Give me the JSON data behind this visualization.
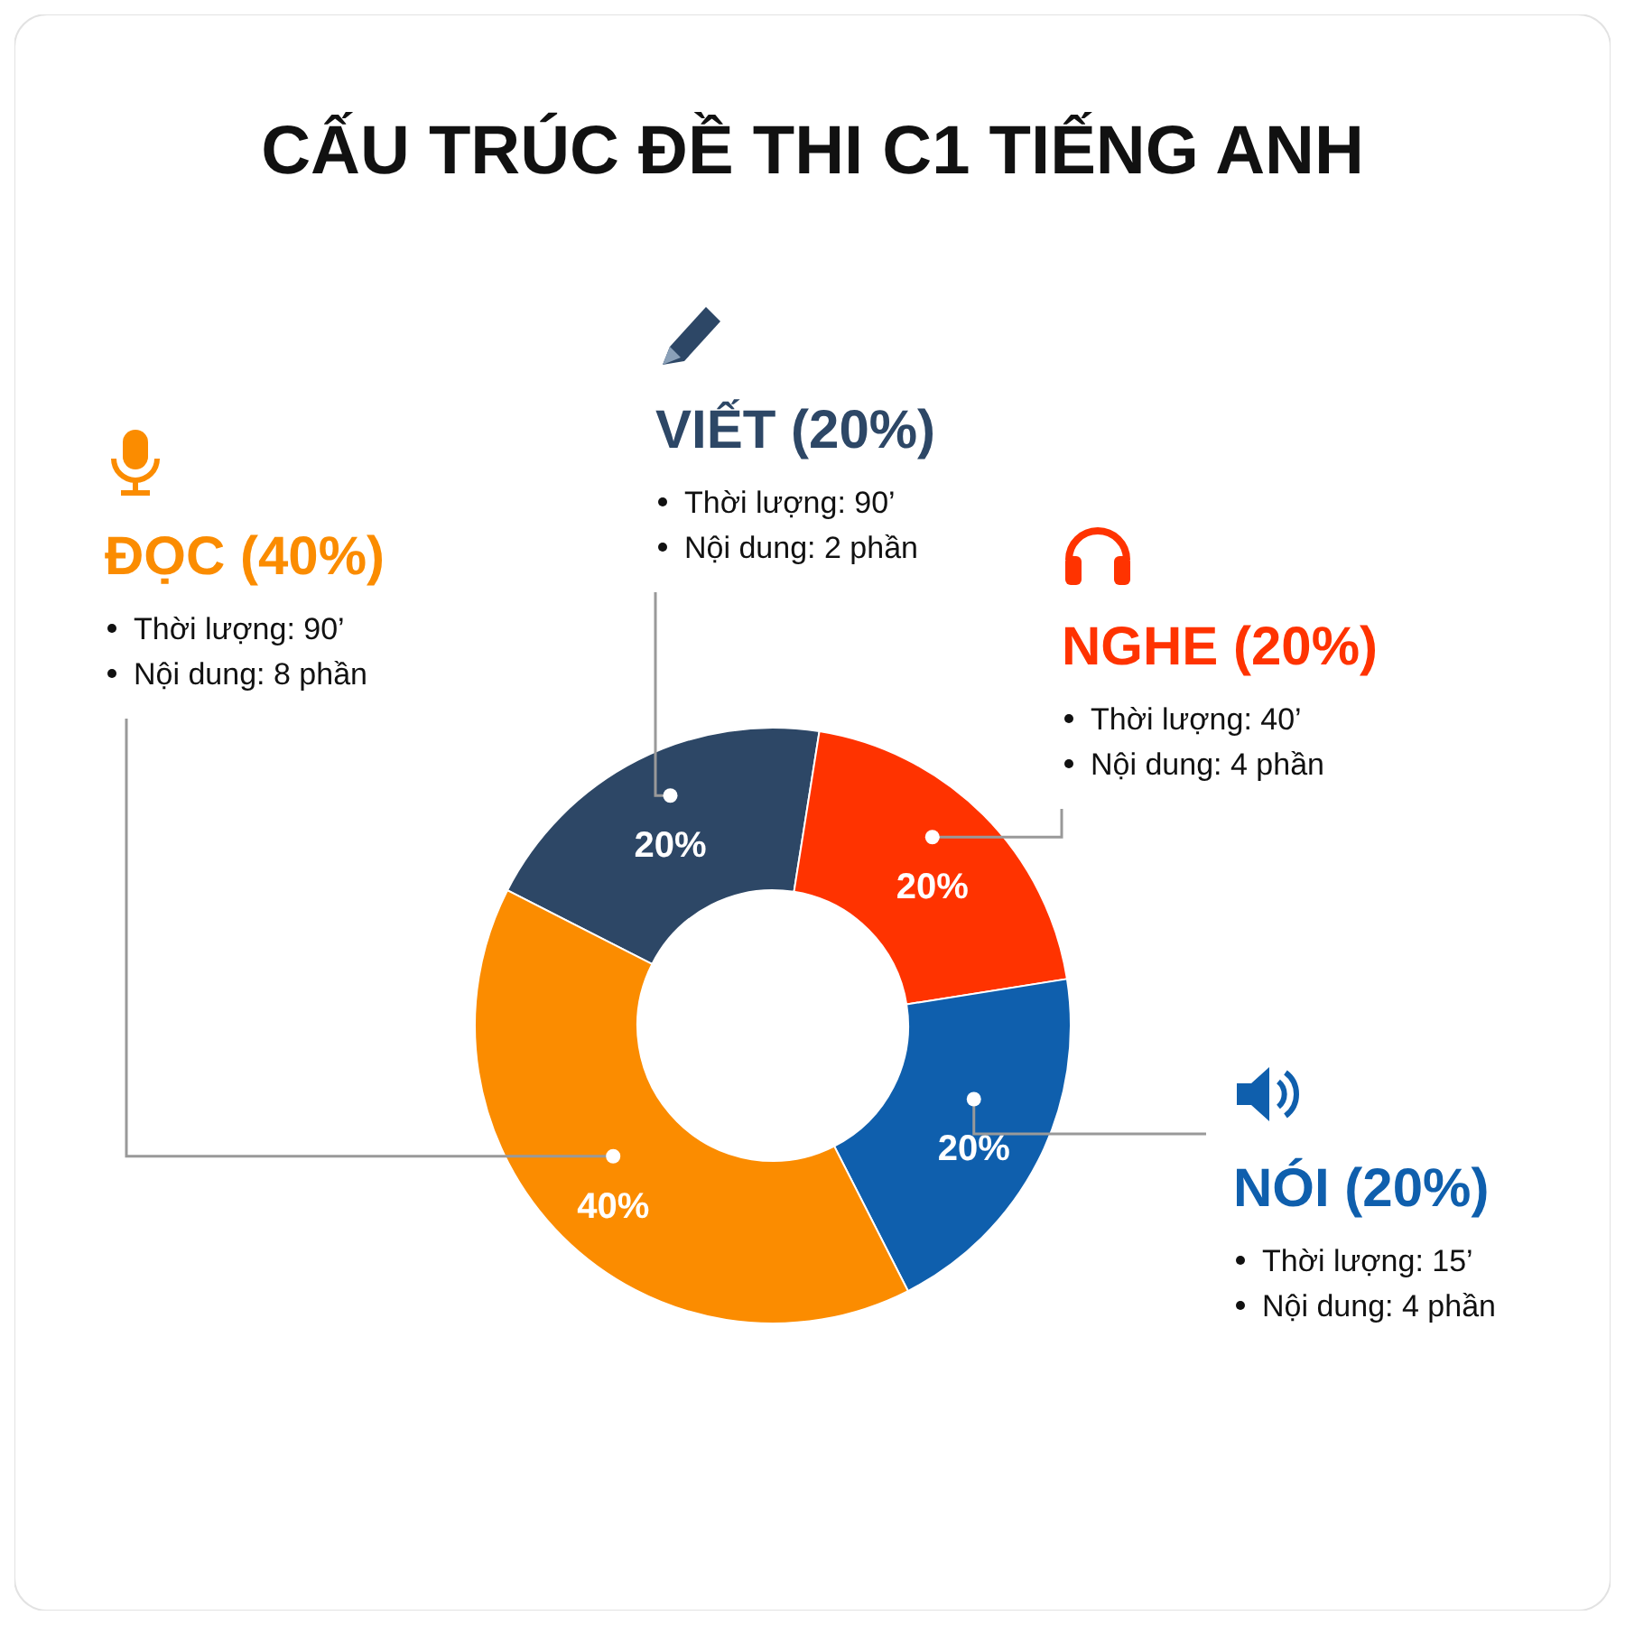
{
  "chart_data": {
    "type": "donut",
    "title": "CẤU TRÚC ĐỀ THI C1 TIẾNG ANH",
    "categories": [
      "VIẾT (20%)",
      "NGHE (20%)",
      "NÓI (20%)",
      "ĐỌC (40%)"
    ],
    "values": [
      20,
      20,
      20,
      40
    ],
    "colors": [
      "#2d4766",
      "#ff3300",
      "#0f5fad",
      "#fb8c00"
    ],
    "value_labels": [
      "20%",
      "20%",
      "20%",
      "40%"
    ],
    "legend": "top",
    "annotations": [
      "Thời lượng: 90’",
      "Nội dung: 2 phần",
      "Thời lượng: 40’",
      "Nội dung: 4 phần",
      "Thời lượng: 15’",
      "Nội dung: 4 phần",
      "Thời lượng: 90’",
      "Nội dung: 8 phần"
    ]
  }
}
